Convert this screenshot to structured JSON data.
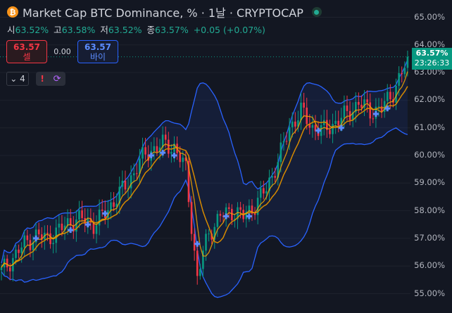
{
  "header": {
    "btc_icon": "bitcoin-icon",
    "title": "Market Cap BTC Dominance, % · 1날 · CRYPTOCAP",
    "ohlc": [
      {
        "label": "시",
        "value": "63.52%"
      },
      {
        "label": "고",
        "value": "63.58%"
      },
      {
        "label": "저",
        "value": "63.52%"
      },
      {
        "label": "종",
        "value": "63.57%"
      }
    ],
    "change": "+0.05 (+0.07%)"
  },
  "trade": {
    "sell_price": "63.57",
    "sell_label": "셀",
    "spread": "0.00",
    "buy_price": "63.57",
    "buy_label": "바이"
  },
  "indicators": {
    "count": "4"
  },
  "price_tag": {
    "price": "63.57%",
    "countdown": "23:26:33"
  },
  "colors": {
    "background": "#131722",
    "up": "#089981",
    "down": "#f23645",
    "bollinger": "#2962ff",
    "ma_fast": "#f7a600",
    "ma_slow": "#d68a00",
    "marker": "#5b8cff"
  },
  "chart_data": {
    "type": "candlestick",
    "title": "Market Cap BTC Dominance, % · 1날 · CRYPTOCAP",
    "y_ticks": [
      "65.00%",
      "64.00%",
      "63.00%",
      "62.00%",
      "61.00%",
      "60.00%",
      "59.00%",
      "58.00%",
      "57.00%",
      "56.00%",
      "55.00%"
    ],
    "ylim": [
      54.5,
      65.3
    ],
    "last_price": 63.57,
    "close_path": [
      [
        0,
        55.8
      ],
      [
        4,
        56.3
      ],
      [
        8,
        56.8
      ],
      [
        12,
        57.1
      ],
      [
        16,
        57.0
      ],
      [
        20,
        57.3
      ],
      [
        24,
        57.6
      ],
      [
        28,
        57.7
      ],
      [
        32,
        57.5
      ],
      [
        36,
        57.9
      ],
      [
        40,
        58.5
      ],
      [
        44,
        59.0
      ],
      [
        48,
        59.8
      ],
      [
        52,
        60.2
      ],
      [
        56,
        60.4
      ],
      [
        60,
        60.3
      ],
      [
        64,
        59.5
      ],
      [
        66,
        57.5
      ],
      [
        68,
        55.5
      ],
      [
        70,
        56.5
      ],
      [
        72,
        57.2
      ],
      [
        76,
        57.8
      ],
      [
        80,
        58.0
      ],
      [
        84,
        57.8
      ],
      [
        88,
        58.2
      ],
      [
        92,
        58.8
      ],
      [
        96,
        59.8
      ],
      [
        100,
        61.0
      ],
      [
        104,
        61.6
      ],
      [
        108,
        61.0
      ],
      [
        112,
        60.9
      ],
      [
        116,
        61.2
      ],
      [
        120,
        61.5
      ],
      [
        124,
        61.9
      ],
      [
        128,
        61.6
      ],
      [
        132,
        61.7
      ],
      [
        136,
        62.3
      ],
      [
        140,
        63.2
      ],
      [
        141,
        63.57
      ]
    ],
    "markers": [
      [
        12,
        57.0
      ],
      [
        24,
        57.3
      ],
      [
        30,
        57.5
      ],
      [
        36,
        57.9
      ],
      [
        52,
        60.0
      ],
      [
        56,
        60.1
      ],
      [
        60,
        60.0
      ],
      [
        68,
        56.8
      ],
      [
        78,
        57.8
      ],
      [
        86,
        57.8
      ],
      [
        110,
        60.9
      ],
      [
        118,
        61.0
      ],
      [
        130,
        61.5
      ],
      [
        134,
        61.7
      ]
    ],
    "indicators": [
      "Bollinger Bands",
      "Moving Average (fast)",
      "Moving Average (slow)"
    ]
  }
}
